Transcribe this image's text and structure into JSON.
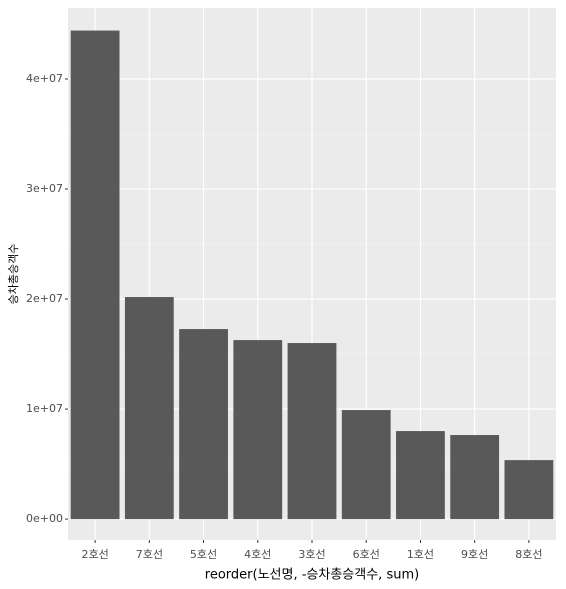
{
  "chart_data": {
    "type": "bar",
    "categories": [
      "2호선",
      "7호선",
      "5호선",
      "4호선",
      "3호선",
      "6호선",
      "1호선",
      "9호선",
      "8호선"
    ],
    "values": [
      44400000,
      20180000,
      17270000,
      16270000,
      16000000,
      9910000,
      8000000,
      7640000,
      5360000
    ],
    "color": "#595959",
    "x_label": "reorder(노선명, -승차총승객수, sum)",
    "y_label": "승차총승객수",
    "ylim": [
      -1900000,
      46450000
    ],
    "yticks": [
      {
        "value": 0,
        "label": "0e+00"
      },
      {
        "value": 10000000,
        "label": "1e+07"
      },
      {
        "value": 20000000,
        "label": "2e+07"
      },
      {
        "value": 30000000,
        "label": "3e+07"
      },
      {
        "value": 40000000,
        "label": "4e+07"
      }
    ],
    "grid": true
  }
}
